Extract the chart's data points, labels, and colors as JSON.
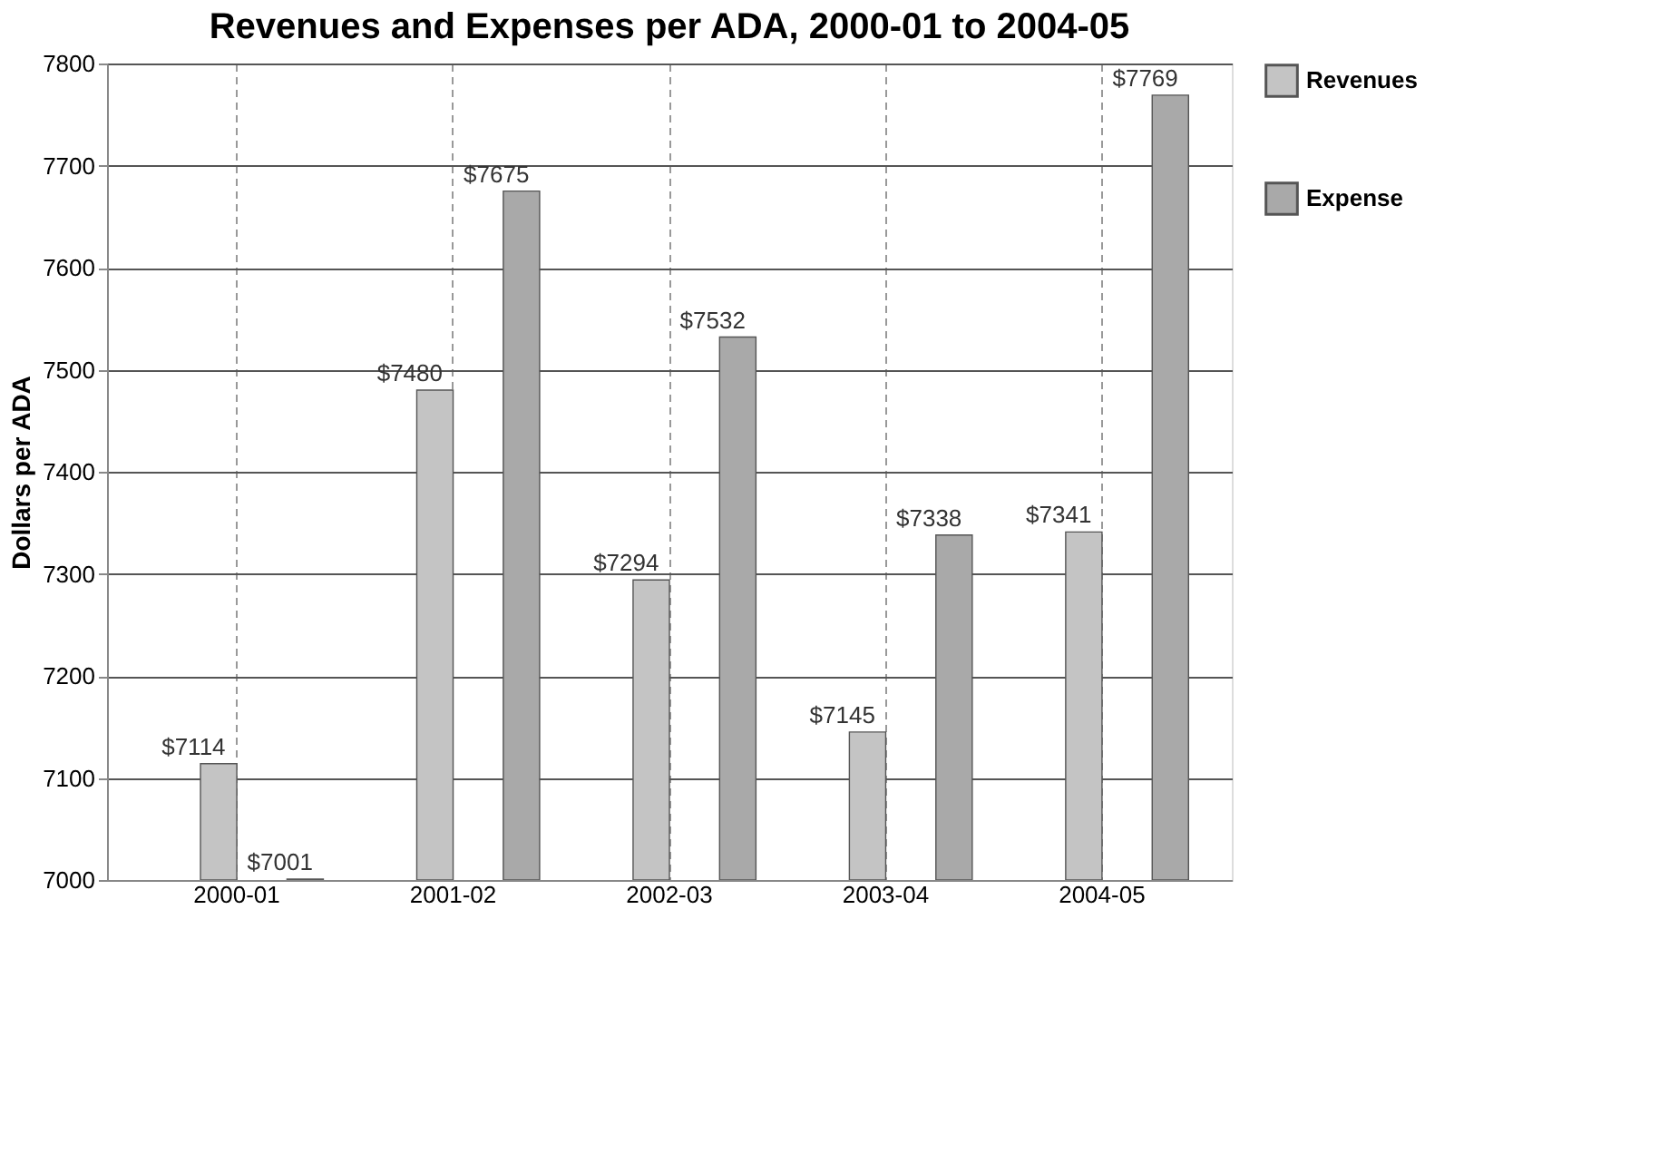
{
  "chart_data": {
    "type": "bar",
    "title": "Revenues and Expenses per ADA, 2000-01 to 2004-05",
    "ylabel": "Dollars per ADA",
    "categories": [
      "2000-01",
      "2001-02",
      "2002-03",
      "2003-04",
      "2004-05"
    ],
    "series": [
      {
        "name": "Revenues",
        "color": "#c4c4c4",
        "values": [
          7114,
          7480,
          7294,
          7145,
          7341
        ],
        "value_labels": [
          "$7114",
          "$7480",
          "$7294",
          "$7145",
          "$7341"
        ]
      },
      {
        "name": "Expense",
        "color": "#a9a9a9",
        "values": [
          7001,
          7675,
          7532,
          7338,
          7769
        ],
        "value_labels": [
          "$7001",
          "$7675",
          "$7532",
          "$7338",
          "$7769"
        ]
      }
    ],
    "ylim": [
      7000,
      7800
    ],
    "yticks": [
      7000,
      7100,
      7200,
      7300,
      7400,
      7500,
      7600,
      7700,
      7800
    ],
    "grid": true,
    "legend": "right"
  }
}
